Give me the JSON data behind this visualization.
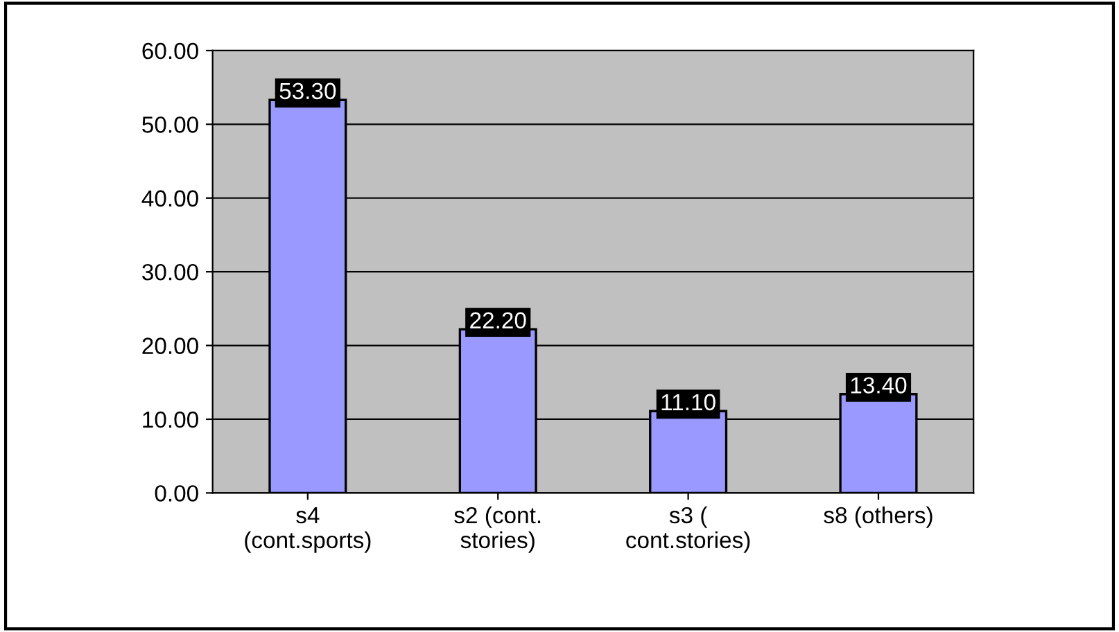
{
  "chart_data": {
    "type": "bar",
    "categories": [
      "s4\n(cont.sports)",
      "s2 (cont.\nstories)",
      "s3 (\ncont.stories)",
      "s8 (others)"
    ],
    "values": [
      53.3,
      22.2,
      11.1,
      13.4
    ],
    "color": "#9999ff",
    "value_labels": [
      "53.30",
      "22.20",
      "11.10",
      "13.40"
    ],
    "ylim": [
      0,
      60
    ],
    "yticks": [
      {
        "value": 0,
        "label": "0.00"
      },
      {
        "value": 10,
        "label": "10.00"
      },
      {
        "value": 20,
        "label": "20.00"
      },
      {
        "value": 30,
        "label": "30.00"
      },
      {
        "value": 40,
        "label": "40.00"
      },
      {
        "value": 50,
        "label": "50.00"
      },
      {
        "value": 60,
        "label": "60.00"
      }
    ],
    "grid": "y",
    "legend": false
  }
}
